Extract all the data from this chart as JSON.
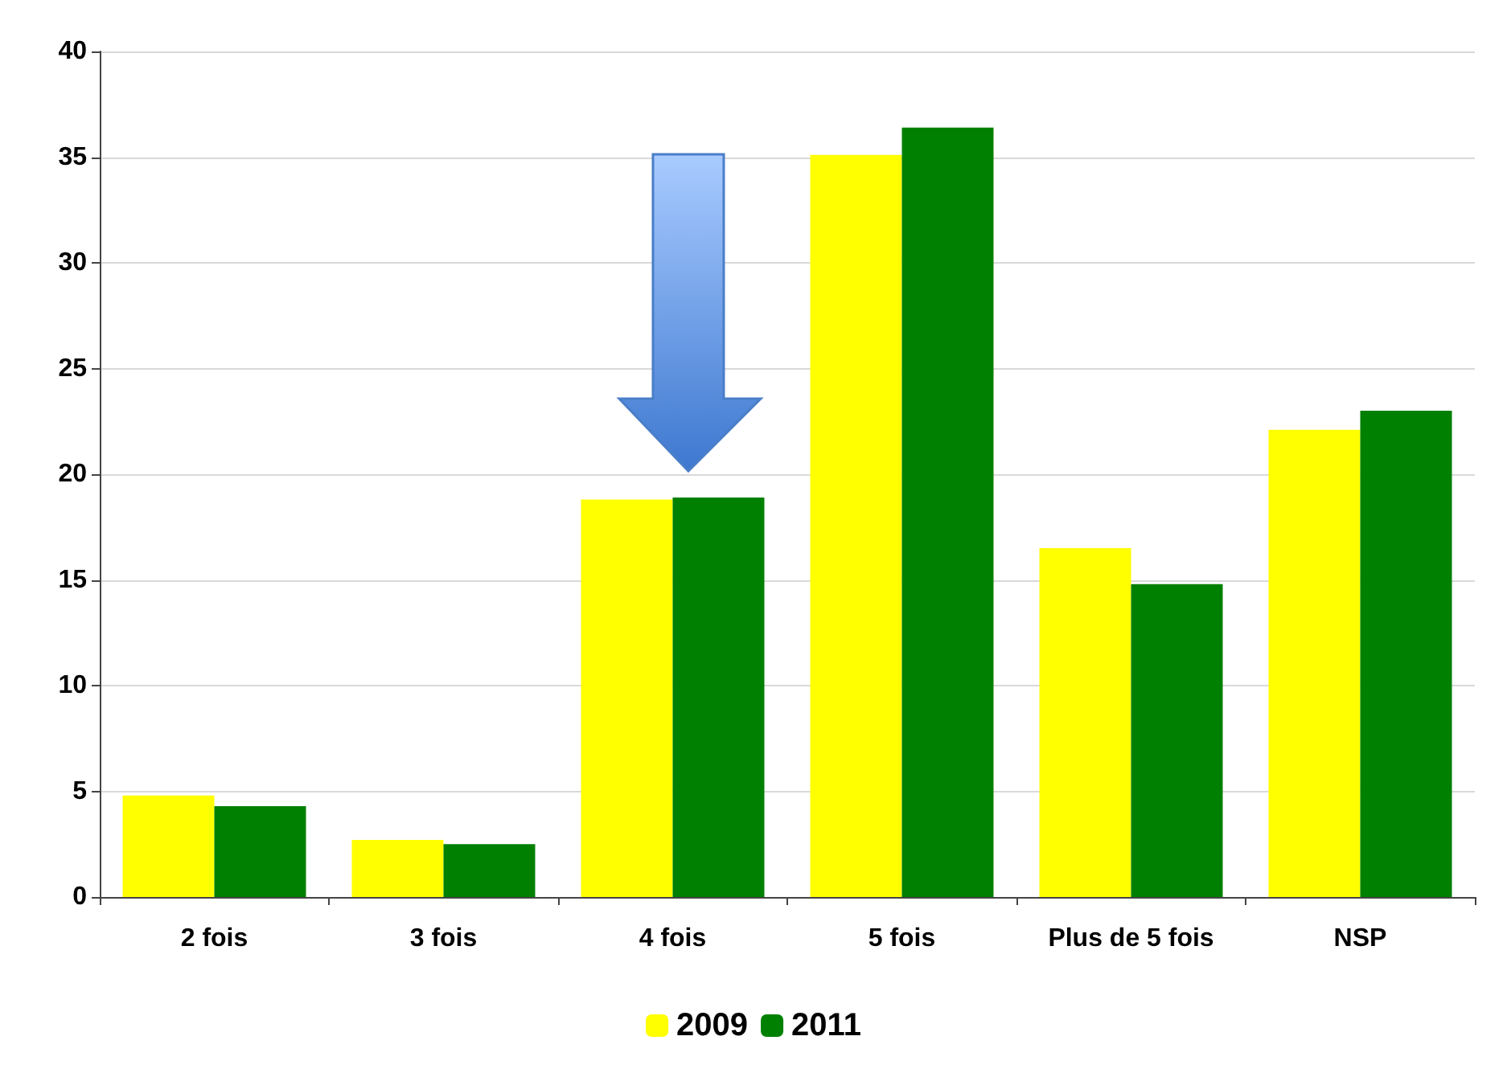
{
  "chart_data": {
    "type": "bar",
    "categories": [
      "2 fois",
      "3 fois",
      "4 fois",
      "5 fois",
      "Plus de 5 fois",
      "NSP"
    ],
    "series": [
      {
        "name": "2009",
        "color": "#ffff00",
        "values": [
          4.8,
          2.7,
          18.8,
          35.1,
          16.5,
          22.1
        ]
      },
      {
        "name": "2011",
        "color": "#008000",
        "values": [
          4.3,
          2.5,
          18.9,
          36.4,
          14.8,
          23.0
        ]
      }
    ],
    "ylim": [
      0,
      40
    ],
    "yticks": [
      0,
      5,
      10,
      15,
      20,
      25,
      30,
      35,
      40
    ],
    "grid": "y",
    "legend": "bottom"
  }
}
